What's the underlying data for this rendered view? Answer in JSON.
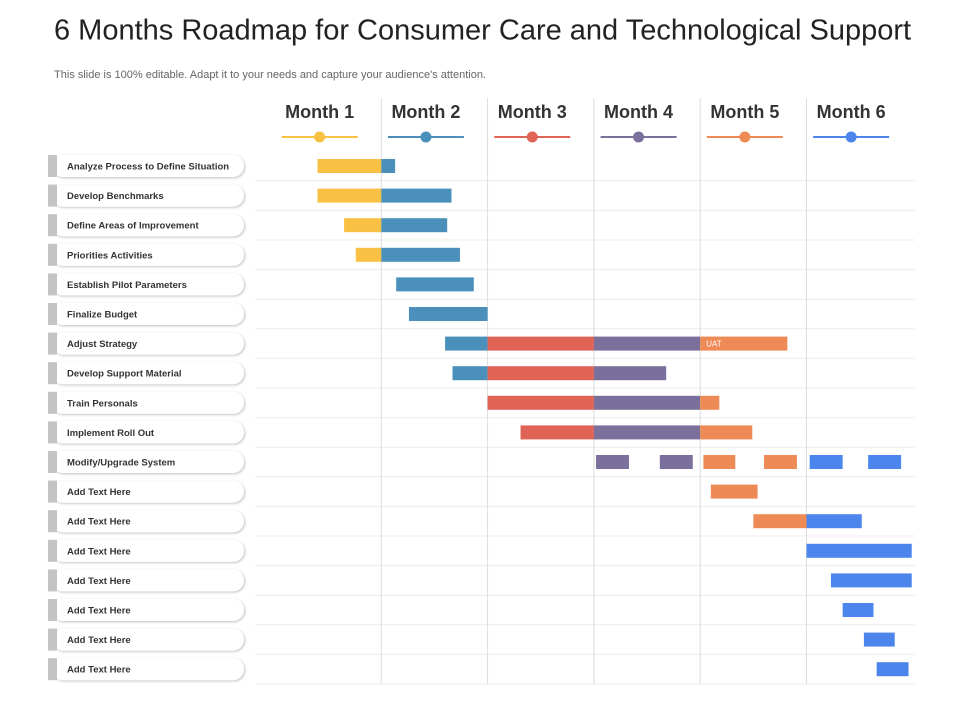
{
  "header": {
    "title": "6 Months Roadmap for Consumer Care and Technological Support",
    "subtitle": "This slide is 100% editable. Adapt it to your needs and capture your audience's attention."
  },
  "months": [
    {
      "label": "Month 1",
      "color": "#f8c143"
    },
    {
      "label": "Month 2",
      "color": "#4a90bb"
    },
    {
      "label": "Month 3",
      "color": "#e06456"
    },
    {
      "label": "Month 4",
      "color": "#7b6f9b"
    },
    {
      "label": "Month 5",
      "color": "#ee8a55"
    },
    {
      "label": "Month 6",
      "color": "#4c86ec"
    }
  ],
  "tasks": [
    {
      "label": "Analyze Process to Define Situation",
      "segments": [
        {
          "start": 0.4,
          "end": 1,
          "color": "#f8c143"
        },
        {
          "start": 1,
          "end": 1.13,
          "color": "#4a90bb"
        }
      ]
    },
    {
      "label": "Develop Benchmarks",
      "segments": [
        {
          "start": 0.4,
          "end": 1,
          "color": "#f8c143"
        },
        {
          "start": 1,
          "end": 1.66,
          "color": "#4a90bb"
        }
      ]
    },
    {
      "label": "Define Areas of Improvement",
      "segments": [
        {
          "start": 0.65,
          "end": 1,
          "color": "#f8c143"
        },
        {
          "start": 1,
          "end": 1.62,
          "color": "#4a90bb"
        }
      ]
    },
    {
      "label": "Priorities Activities",
      "segments": [
        {
          "start": 0.76,
          "end": 1,
          "color": "#f8c143"
        },
        {
          "start": 1,
          "end": 1.74,
          "color": "#4a90bb"
        }
      ]
    },
    {
      "label": "Establish Pilot Parameters",
      "segments": [
        {
          "start": 1.14,
          "end": 1.87,
          "color": "#4a90bb"
        }
      ]
    },
    {
      "label": "Finalize Budget",
      "segments": [
        {
          "start": 1.26,
          "end": 2,
          "color": "#4a90bb"
        }
      ]
    },
    {
      "label": "Adjust Strategy",
      "segments": [
        {
          "start": 1.6,
          "end": 2,
          "color": "#4a90bb"
        },
        {
          "start": 2,
          "end": 3,
          "color": "#e06456"
        },
        {
          "start": 3,
          "end": 4,
          "color": "#7b6f9b"
        },
        {
          "start": 4,
          "end": 4.82,
          "color": "#ee8a55",
          "label": "UAT"
        }
      ]
    },
    {
      "label": "Develop Support Material",
      "segments": [
        {
          "start": 1.67,
          "end": 2,
          "color": "#4a90bb"
        },
        {
          "start": 2,
          "end": 3,
          "color": "#e06456"
        },
        {
          "start": 3,
          "end": 3.68,
          "color": "#7b6f9b"
        }
      ]
    },
    {
      "label": "Train Personals",
      "segments": [
        {
          "start": 2,
          "end": 3,
          "color": "#e06456"
        },
        {
          "start": 3,
          "end": 4,
          "color": "#7b6f9b"
        },
        {
          "start": 4,
          "end": 4.18,
          "color": "#ee8a55"
        }
      ]
    },
    {
      "label": "Implement Roll Out",
      "segments": [
        {
          "start": 2.31,
          "end": 3,
          "color": "#e06456"
        },
        {
          "start": 3,
          "end": 4,
          "color": "#7b6f9b"
        },
        {
          "start": 4,
          "end": 4.49,
          "color": "#ee8a55"
        }
      ]
    },
    {
      "label": "Modify/Upgrade System",
      "segments": [
        {
          "start": 3.02,
          "end": 3.33,
          "color": "#7b6f9b"
        },
        {
          "start": 3.62,
          "end": 3.93,
          "color": "#7b6f9b"
        },
        {
          "start": 4.03,
          "end": 4.33,
          "color": "#ee8a55"
        },
        {
          "start": 4.6,
          "end": 4.91,
          "color": "#ee8a55"
        },
        {
          "start": 5.03,
          "end": 5.34,
          "color": "#4c86ec"
        },
        {
          "start": 5.58,
          "end": 5.89,
          "color": "#4c86ec"
        }
      ]
    },
    {
      "label": "Add Text Here",
      "segments": [
        {
          "start": 4.1,
          "end": 4.54,
          "color": "#ee8a55"
        }
      ]
    },
    {
      "label": "Add Text Here",
      "segments": [
        {
          "start": 4.5,
          "end": 5,
          "color": "#ee8a55"
        },
        {
          "start": 5,
          "end": 5.52,
          "color": "#4c86ec"
        }
      ]
    },
    {
      "label": "Add Text Here",
      "segments": [
        {
          "start": 5,
          "end": 5.99,
          "color": "#4c86ec"
        }
      ]
    },
    {
      "label": "Add Text Here",
      "segments": [
        {
          "start": 5.23,
          "end": 5.99,
          "color": "#4c86ec"
        }
      ]
    },
    {
      "label": "Add Text Here",
      "segments": [
        {
          "start": 5.34,
          "end": 5.63,
          "color": "#4c86ec"
        }
      ]
    },
    {
      "label": "Add Text Here",
      "segments": [
        {
          "start": 5.54,
          "end": 5.83,
          "color": "#4c86ec"
        }
      ]
    },
    {
      "label": "Add Text Here",
      "segments": [
        {
          "start": 5.66,
          "end": 5.96,
          "color": "#4c86ec"
        }
      ]
    }
  ]
}
